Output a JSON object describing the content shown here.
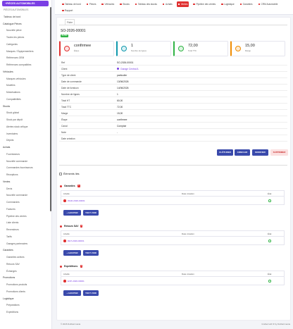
{
  "sidebar": {
    "button": "PIÈCES AUTOMOBILES",
    "heading": "PIÈCES AUTOMOBILES",
    "home": "Tableau de bord",
    "groups": [
      {
        "title": "Catalogue Pièces",
        "items": [
          "Nouvelle pièce",
          "Toutes les pièces",
          "Catégories",
          "Marques / Équipementiers",
          "Références OEM",
          "Références compatibles"
        ]
      },
      {
        "title": "Véhicules",
        "items": [
          "Marques véhicules",
          "Modèles",
          "Motorisations",
          "Compatibilités"
        ]
      },
      {
        "title": "Stocks",
        "items": [
          "Stock global",
          "Stock par dépôt",
          "Alertes stock critique",
          "Inventaires",
          "Dépôts"
        ]
      },
      {
        "title": "Achats",
        "items": [
          "Fournisseurs",
          "Nouvelle commande",
          "Commandes fournisseurs",
          "Réceptions"
        ]
      },
      {
        "title": "Ventes",
        "items": [
          "Devis",
          "Nouvelle commande",
          "Commandes",
          "Factures",
          "Pipeline des ventes",
          "Liste clients",
          "Revendeurs",
          "Tarifs",
          "Garages partenaires"
        ]
      },
      {
        "title": "Garanties",
        "items": [
          "Garanties actives",
          "Retours SAV",
          "Échanges"
        ]
      },
      {
        "title": "Promotions",
        "items": [
          "Promotions produits",
          "Promotions clients"
        ]
      },
      {
        "title": "Logistique",
        "items": [
          "Préparations",
          "Expéditions"
        ]
      }
    ]
  },
  "topnav": {
    "items": [
      "Tableau de bord",
      "Pièces",
      "Véhicules",
      "Stocks",
      "Tableau des stocks",
      "Achats",
      "Ventes",
      "Pipeline des ventes",
      "Logistique",
      "Garanties",
      "CRM Automobile",
      "Rapport"
    ]
  },
  "record": {
    "tab": "Fiche",
    "title": "SO-2026-00001",
    "badge": "AUTO",
    "stats": [
      {
        "value": "confirmee",
        "label": "Étape"
      },
      {
        "value": "1",
        "label": "Nombre de lignes"
      },
      {
        "value": "72,00",
        "label": "Total TTC"
      },
      {
        "value": "15,00",
        "label": "Marge"
      }
    ],
    "fields": [
      {
        "label": "Ref",
        "value": "SO-2026-00001"
      },
      {
        "label": "Client",
        "value": "Garage Central A"
      },
      {
        "label": "Type de client",
        "value": "particulier"
      },
      {
        "label": "Date de commande",
        "value": "13/06/2026"
      },
      {
        "label": "Date de livraison",
        "value": "14/06/2026"
      },
      {
        "label": "Nombre de lignes",
        "value": "1"
      },
      {
        "label": "Total HT",
        "value": "60,00"
      },
      {
        "label": "Total TTC",
        "value": "72,00"
      },
      {
        "label": "Marge",
        "value": "15,00"
      },
      {
        "label": "Étape",
        "value": "confirmee"
      },
      {
        "label": "Canal",
        "value": "Comptoir"
      },
      {
        "label": "Note",
        "value": "-"
      },
      {
        "label": "Date création"
      }
    ],
    "actions": [
      "CLÔTURER",
      "ANNULER",
      "MODIFIER",
      "SUPPRIMER"
    ]
  },
  "related": {
    "title": "Éléments liés",
    "columns": [
      "Libellé",
      "Date création",
      "État"
    ],
    "add": "+ AJOUTER",
    "view_all": "TOUT VOIR",
    "sections": [
      {
        "title": "Garanties",
        "count": 1,
        "rows": [
          "WAR-2026-00001"
        ]
      },
      {
        "title": "Retours SAV",
        "count": 1,
        "rows": [
          "RET-2026-00001"
        ]
      },
      {
        "title": "Expéditions",
        "count": 1,
        "rows": [
          "EXP-2026-00001"
        ]
      }
    ]
  },
  "footer": {
    "left": "© 2026 Dolibarrmania",
    "right": "Crafted with ♥ by Dolibarrmania"
  }
}
